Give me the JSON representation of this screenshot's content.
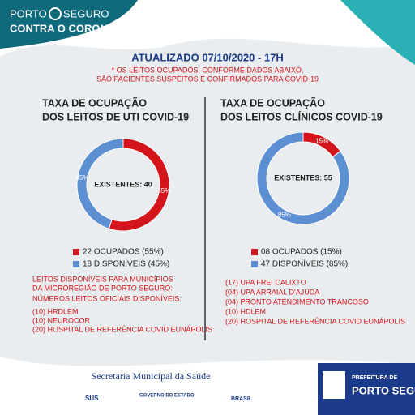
{
  "header": {
    "brand_left": "PORTO",
    "brand_right": "SEGURO",
    "campaign": "CONTRA O CORONA"
  },
  "updated": "ATUALIZADO 07/10/2020 - 17H",
  "note": [
    "* OS LEITOS OCUPADOS, CONFORME DADOS ABAIXO,",
    "SÃO PACIENTES SUSPEITOS E CONFIRMADOS PARA COVID-19"
  ],
  "chart_data": [
    {
      "type": "pie",
      "donut": true,
      "title": [
        "TAXA DE OCUPAÇÃO",
        "DOS LEITOS DE UTI COVID-19"
      ],
      "center_label": "EXISTENTES: 40",
      "categories": [
        "22 OCUPADOS (55%)",
        "18 DISPONÍVEIS (45%)"
      ],
      "values": [
        55,
        45
      ],
      "value_labels": [
        "55%",
        "45%"
      ],
      "colors": [
        "#d3151b",
        "#5d8fd3"
      ]
    },
    {
      "type": "pie",
      "donut": true,
      "title": [
        "TAXA DE OCUPAÇÃO",
        "DOS LEITOS CLÍNICOS COVID-19"
      ],
      "center_label": "EXISTENTES: 55",
      "categories": [
        "08 OCUPADOS (15%)",
        "47 DISPONÍVEIS (85%)"
      ],
      "values": [
        15,
        85
      ],
      "value_labels": [
        "15%",
        "85%"
      ],
      "colors": [
        "#d3151b",
        "#5d8fd3"
      ]
    }
  ],
  "left_list": {
    "heading": [
      "LEITOS DISPONÍVEIS PARA MUNICÍPIOS",
      "DA MICROREGIÃO DE PORTO SEGURO:"
    ],
    "subheading": "NÚMEROS LEITOS OFICIAIS DISPONÍVEIS:",
    "items": [
      "(10) HRDLEM",
      "(10) NEUROCOR",
      "(20) HOSPITAL DE REFERÊNCIA COVID EUNÁPOLIS"
    ]
  },
  "right_list": {
    "items": [
      "(17) UPA FREI CALIXTO",
      "(04) UPA ARRAIAL D'AJUDA",
      "(04) PRONTO ATENDIMENTO TRANCOSO",
      "(10) HDLEM",
      "(20) HOSPITAL DE REFERÊNCIA COVID EUNÁPOLIS"
    ]
  },
  "footer": {
    "department": "Secretaria Municipal da Saúde",
    "logos": [
      "SUS",
      "GOVERNO DO ESTADO",
      "BRASIL"
    ],
    "city_top": "PREFEITURA DE",
    "city": "PORTO SEGURO"
  }
}
